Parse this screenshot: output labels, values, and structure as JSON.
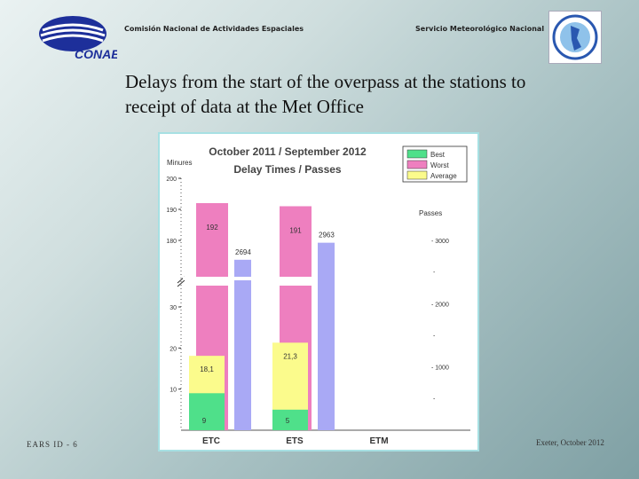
{
  "header": {
    "left_org": "Comisión Nacional de Actividades Espaciales",
    "right_org": "Servicio Meteorológico Nacional",
    "logo_left_text": "CONAE"
  },
  "slide_title": "Delays from the start of the overpass at the stations to receipt of data at the Met Office",
  "footer": {
    "left": "EARS ID - 6",
    "right": "Exeter, October 2012"
  },
  "colors": {
    "best": "#4fe08a",
    "worst": "#ee7fbf",
    "average": "#fbfb8c",
    "passes": "#a9a9f5",
    "frame": "#a7e0e3"
  },
  "chart_data": {
    "type": "bar",
    "title": "October 2011 / September 2012",
    "subtitle": "Delay Times / Passes",
    "ylabel": "Minures",
    "y2label": "Passes",
    "categories": [
      "ETC",
      "ETS",
      "ETM"
    ],
    "y_ticks": [
      10,
      20,
      30,
      180,
      190,
      200
    ],
    "y2_ticks": [
      1000,
      2000,
      3000
    ],
    "y2_tick_labels": [
      "- 1000",
      "- 2000",
      "- 3000"
    ],
    "axis_break": "between 30 and 180 minutes",
    "legend_position": "top-right",
    "series": [
      {
        "name": "Best",
        "values": [
          9,
          5,
          null
        ],
        "labels": [
          "9",
          "5",
          ""
        ]
      },
      {
        "name": "Worst",
        "values": [
          192,
          191,
          null
        ],
        "labels": [
          "192",
          "191",
          ""
        ]
      },
      {
        "name": "Average",
        "values": [
          18.1,
          21.3,
          null
        ],
        "labels": [
          "18,1",
          "21,3",
          ""
        ]
      },
      {
        "name": "Passes",
        "values": [
          2694,
          2963,
          null
        ],
        "labels": [
          "2694",
          "2963",
          ""
        ]
      }
    ]
  }
}
